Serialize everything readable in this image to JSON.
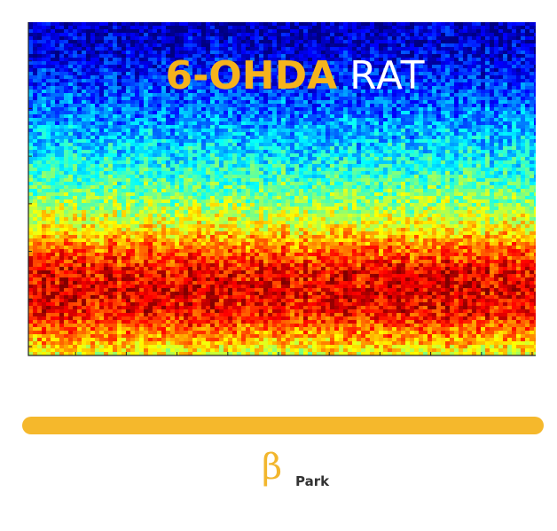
{
  "heading": {
    "bold": "6-OHDA",
    "light": "RAT"
  },
  "band": {
    "symbol": "β",
    "subscript": "Park"
  },
  "colors": {
    "accent": "#f5b31c",
    "colormap": "jet",
    "background": "#ffffff"
  },
  "chart_data": {
    "type": "heatmap",
    "colormap": "jet",
    "title": "",
    "xlabel": "",
    "ylabel": "",
    "grid": false,
    "x_ticks": 10,
    "y_ticks": 7,
    "description_of_rows": [
      "low power at top (blue)",
      "increasing toward bottom",
      "peak band in lower rows (red)",
      "slightly lower power at very bottom"
    ],
    "power_profile_top_to_bottom": [
      0.05,
      0.08,
      0.12,
      0.17,
      0.22,
      0.28,
      0.34,
      0.4,
      0.47,
      0.55,
      0.65,
      0.78,
      0.88,
      0.9,
      0.86,
      0.74,
      0.6
    ]
  }
}
